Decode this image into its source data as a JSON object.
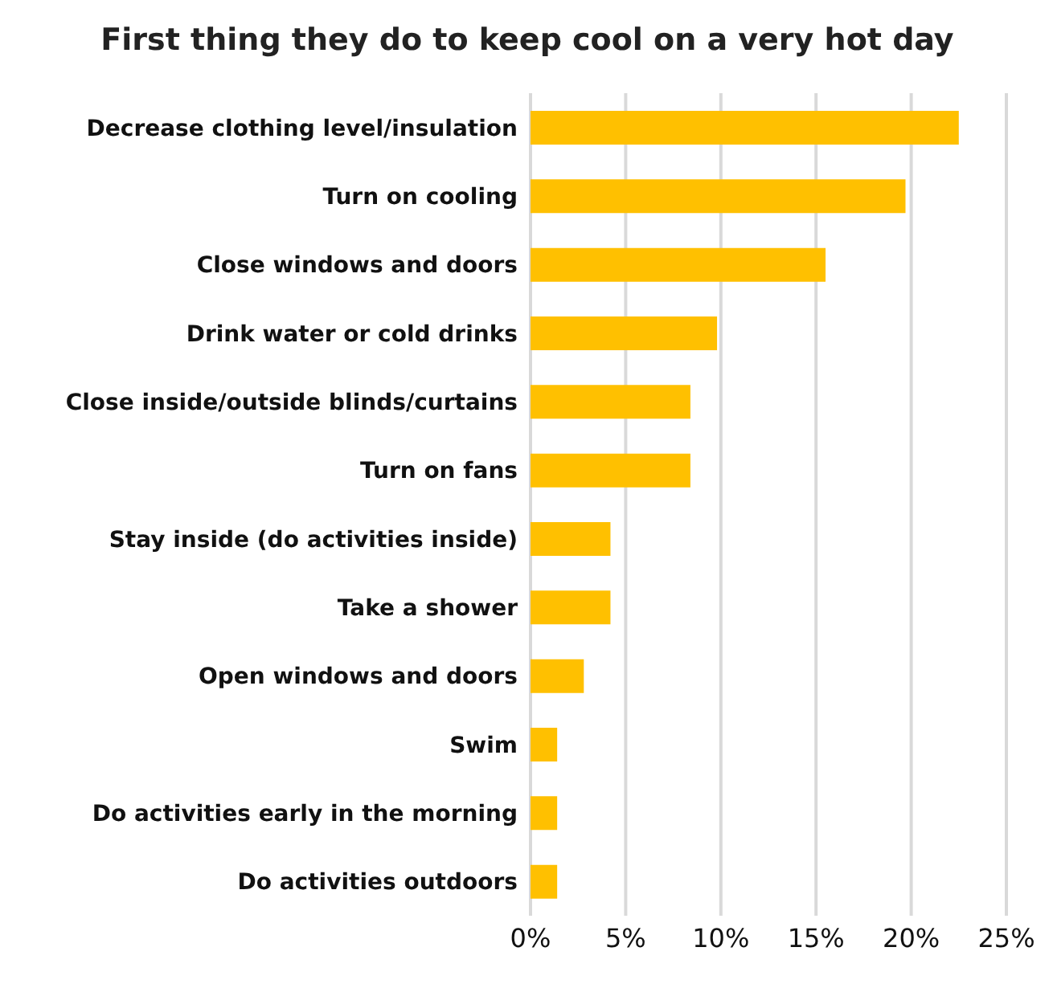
{
  "chart_data": {
    "type": "bar",
    "orientation": "horizontal",
    "title": "First thing they do to keep cool on a very hot day",
    "categories": [
      "Decrease clothing level/insulation",
      "Turn on cooling",
      "Close windows and doors",
      "Drink water or cold drinks",
      "Close inside/outside blinds/curtains",
      "Turn on fans",
      "Stay inside (do activities inside)",
      "Take a shower",
      "Open windows and doors",
      "Swim",
      "Do activities early in the morning",
      "Do activities outdoors"
    ],
    "values": [
      22.5,
      19.7,
      15.5,
      9.8,
      8.4,
      8.4,
      4.2,
      4.2,
      2.8,
      1.4,
      1.4,
      1.4
    ],
    "color": "#ffc000",
    "xlim": [
      0,
      25
    ],
    "xticks": [
      {
        "value": 0,
        "label": "0%"
      },
      {
        "value": 5,
        "label": "5%"
      },
      {
        "value": 10,
        "label": "10%"
      },
      {
        "value": 15,
        "label": "15%"
      },
      {
        "value": 20,
        "label": "20%"
      },
      {
        "value": 25,
        "label": "25%"
      }
    ],
    "grid": "x",
    "legend": false
  }
}
